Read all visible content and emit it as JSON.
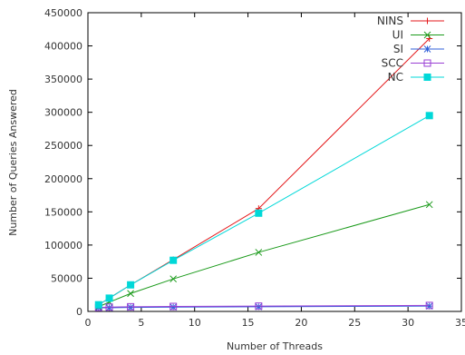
{
  "chart_data": {
    "type": "line",
    "xlabel": "Number of Threads",
    "ylabel": "Number of Queries Answered",
    "xlim": [
      0,
      35
    ],
    "ylim": [
      0,
      450000
    ],
    "xticks": [
      0,
      5,
      10,
      15,
      20,
      25,
      30,
      35
    ],
    "yticks": [
      0,
      50000,
      100000,
      150000,
      200000,
      250000,
      300000,
      350000,
      400000,
      450000
    ],
    "x": [
      1,
      2,
      4,
      8,
      16,
      32
    ],
    "grid": false,
    "legend": "top-right",
    "series": [
      {
        "name": "NINS",
        "color": "#e41a1c",
        "marker": "plus",
        "values": [
          10000,
          20000,
          40000,
          78000,
          155000,
          411000
        ]
      },
      {
        "name": "UI",
        "color": "#1a9a1a",
        "marker": "x",
        "values": [
          7000,
          14000,
          27000,
          49000,
          89000,
          161000
        ]
      },
      {
        "name": "SI",
        "color": "#2f5fd9",
        "marker": "star",
        "values": [
          5500,
          5500,
          6000,
          6500,
          7000,
          8000
        ]
      },
      {
        "name": "SCC",
        "color": "#9a3fd4",
        "marker": "square-open",
        "values": [
          6000,
          6500,
          7000,
          7500,
          8000,
          9000
        ]
      },
      {
        "name": "NC",
        "color": "#00d8d8",
        "marker": "square-filled",
        "values": [
          10000,
          20000,
          40000,
          77000,
          148000,
          295000
        ]
      }
    ]
  }
}
